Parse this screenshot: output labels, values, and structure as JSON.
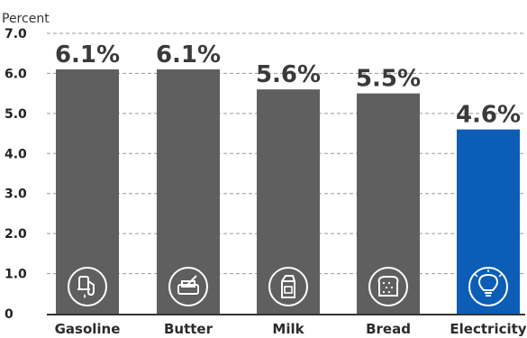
{
  "chart_data": {
    "type": "bar",
    "title": "",
    "ylabel": "Percent",
    "xlabel": "",
    "ylim": [
      0,
      7
    ],
    "yticks": [
      "0",
      "1.0",
      "2.0",
      "3.0",
      "4.0",
      "5.0",
      "6.0",
      "7.0"
    ],
    "grid": true,
    "categories": [
      "Gasoline",
      "Butter",
      "Milk",
      "Bread",
      "Electricity"
    ],
    "values": [
      6.1,
      6.1,
      5.6,
      5.5,
      4.6
    ],
    "value_labels": [
      "6.1%",
      "6.1%",
      "5.6%",
      "5.5%",
      "4.6%"
    ],
    "icons": [
      "gas-pump-icon",
      "butter-icon",
      "milk-carton-icon",
      "bread-icon",
      "light-bulb-icon"
    ],
    "colors": {
      "default_bar": "#5f5f5f",
      "highlight_bar": "#0c5db5",
      "highlight_category": "Electricity",
      "highlight_label": "#1a66b8"
    }
  }
}
